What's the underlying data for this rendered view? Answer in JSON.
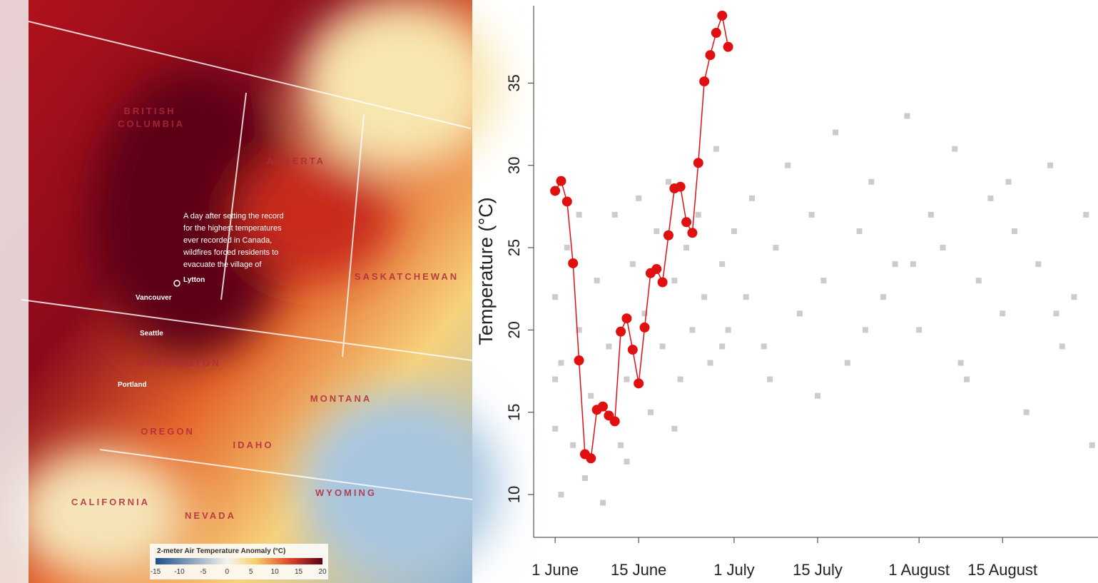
{
  "map": {
    "regions": [
      "BRITISH",
      "COLUMBIA",
      "ALBERTA",
      "SASKATCHEWAN",
      "WASHINGTON",
      "MONTANA",
      "OREGON",
      "IDAHO",
      "WYOMING",
      "CALIFORNIA",
      "NEVADA"
    ],
    "cities": [
      "Vancouver",
      "Seattle",
      "Portland",
      "Lytton"
    ],
    "annotation": [
      "A day after setting the record",
      "for the highest temperatures",
      "ever recorded in Canada,",
      "wildfires forced residents to",
      "evacuate the village of"
    ],
    "colorbar": {
      "title": "2-meter Air Temperature Anomaly (°C)",
      "lim": [
        -15,
        20
      ],
      "ticks": [
        -15,
        -10,
        -5,
        0,
        5,
        10,
        15,
        20
      ]
    }
  },
  "chart_data": {
    "type": "scatter",
    "y_label": "Temperature (°C)",
    "xlim": [
      -3.6,
      91
    ],
    "ylim": [
      7.4,
      39.7
    ],
    "xticks": [
      {
        "value": 0,
        "label": "1 June"
      },
      {
        "value": 14,
        "label": "15 June"
      },
      {
        "value": 30,
        "label": "1 July"
      },
      {
        "value": 44,
        "label": "15 July"
      },
      {
        "value": 61,
        "label": "1 August"
      },
      {
        "value": 75,
        "label": "15 August"
      }
    ],
    "yticks": [
      10,
      15,
      20,
      25,
      30,
      35
    ],
    "series": [
      {
        "color": "#cccccc",
        "line": false,
        "x": [
          0,
          0,
          0,
          1,
          1,
          2,
          3,
          4,
          5,
          6,
          7,
          8,
          9,
          10,
          11,
          12,
          13,
          14,
          15,
          16,
          17,
          18,
          19,
          20,
          21,
          22,
          23,
          24,
          25,
          26,
          27,
          28,
          29,
          30,
          32,
          33,
          35,
          37,
          39,
          41,
          43,
          45,
          47,
          49,
          51,
          53,
          55,
          57,
          59,
          61,
          63,
          65,
          67,
          69,
          71,
          73,
          75,
          77,
          79,
          81,
          83,
          85,
          87,
          89,
          90,
          4,
          12,
          20,
          28,
          36,
          44,
          52,
          60,
          68,
          76,
          84
        ],
        "values": [
          14,
          22,
          17,
          10,
          18,
          25,
          13,
          20,
          11,
          16,
          23,
          9.5,
          19,
          27,
          13,
          17,
          24,
          28,
          21,
          15,
          26,
          19,
          29,
          23,
          17,
          25,
          20,
          27,
          22,
          18,
          31,
          24,
          20,
          26,
          22,
          28,
          19,
          25,
          30,
          21,
          27,
          23,
          32,
          18,
          26,
          29,
          22,
          24,
          33,
          20,
          27,
          25,
          31,
          17,
          23,
          28,
          21,
          26,
          15,
          24,
          30,
          19,
          22,
          27,
          13,
          27,
          12,
          14,
          19,
          17,
          16,
          20,
          24,
          18,
          29,
          21
        ]
      },
      {
        "color": "#e01010",
        "line": true,
        "x": [
          0,
          1,
          2,
          3,
          4,
          5,
          6,
          7,
          8,
          9,
          10,
          11,
          12,
          13,
          14,
          15,
          16,
          17,
          18,
          19,
          20,
          21,
          22,
          23,
          24,
          25,
          26,
          27,
          28,
          29
        ],
        "values": [
          28.45,
          29.05,
          27.8,
          24.05,
          18.15,
          12.45,
          12.2,
          15.15,
          15.35,
          14.8,
          14.45,
          19.9,
          20.7,
          18.8,
          16.75,
          20.15,
          23.45,
          23.7,
          22.9,
          25.75,
          28.6,
          28.7,
          26.55,
          25.9,
          30.15,
          35.1,
          36.7,
          38.05,
          39.1,
          37.2
        ]
      }
    ]
  }
}
